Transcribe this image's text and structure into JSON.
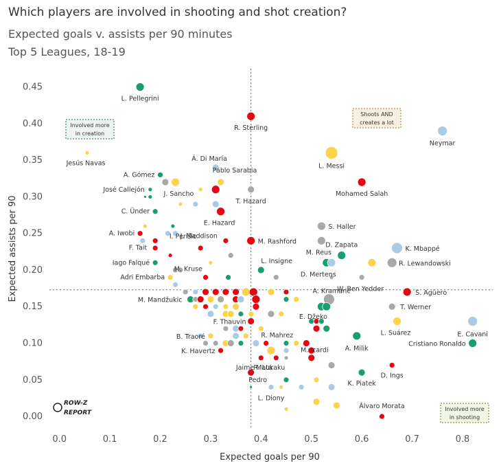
{
  "header": {
    "title": "Which players are involved in shooting and shot creation?",
    "subtitle1": "Expected goals v. assists per 90 minutes",
    "subtitle2": "Top 5 Leagues, 18-19"
  },
  "logo": {
    "line1": "ROW-Z",
    "line2": "REPORT"
  },
  "annotations": {
    "creation": [
      "Involved more",
      "in creation"
    ],
    "both": [
      "Shoots AND",
      "creates a lot"
    ],
    "shooting": [
      "Involved more",
      "in shooting"
    ]
  },
  "colors": {
    "green": "#1b9e6e",
    "red": "#e30613",
    "grey": "#a8a8a8",
    "lightblue": "#a9cbe8",
    "yellow": "#fdd34d"
  },
  "chart_data": {
    "type": "scatter",
    "xlabel": "Expected goals per 90",
    "ylabel": "Expected assists per 90",
    "xlim": [
      -0.02,
      0.86
    ],
    "ylim": [
      -0.015,
      0.475
    ],
    "xticks": [
      "0.0",
      "0.1",
      "0.2",
      "0.3",
      "0.4",
      "0.5",
      "0.6",
      "0.7",
      "0.8"
    ],
    "yticks": [
      "0.00",
      "0.05",
      "0.10",
      "0.15",
      "0.20",
      "0.25",
      "0.30",
      "0.35",
      "0.40",
      "0.45"
    ],
    "reference_lines": {
      "x": 0.38,
      "y": 0.173
    },
    "points": [
      {
        "name": "L. Pellegrini",
        "x": 0.16,
        "y": 0.45,
        "color": "green",
        "size": 6
      },
      {
        "name": "R. Sterling",
        "x": 0.38,
        "y": 0.41,
        "color": "red",
        "size": 6
      },
      {
        "name": "Neymar",
        "x": 0.76,
        "y": 0.39,
        "color": "lightblue",
        "size": 7
      },
      {
        "name": "Jesús Navas",
        "x": 0.055,
        "y": 0.36,
        "color": "yellow",
        "size": 3
      },
      {
        "name": "Á. Di María",
        "x": 0.31,
        "y": 0.34,
        "color": "lightblue",
        "size": 5
      },
      {
        "name": "L. Messi",
        "x": 0.54,
        "y": 0.36,
        "color": "yellow",
        "size": 9
      },
      {
        "name": "A. Gómez",
        "x": 0.2,
        "y": 0.33,
        "color": "green",
        "size": 4
      },
      {
        "name": "Pablo Sarabia",
        "x": 0.32,
        "y": 0.32,
        "color": "yellow",
        "size": 5
      },
      {
        "name": "J. Sancho",
        "x": 0.23,
        "y": 0.32,
        "color": "yellow",
        "size": 6
      },
      {
        "name": "",
        "x": 0.21,
        "y": 0.32,
        "color": "grey",
        "size": 5
      },
      {
        "name": "Mohamed Salah",
        "x": 0.6,
        "y": 0.32,
        "color": "red",
        "size": 6
      },
      {
        "name": "José Callejón",
        "x": 0.18,
        "y": 0.31,
        "color": "green",
        "size": 3
      },
      {
        "name": "",
        "x": 0.17,
        "y": 0.3,
        "color": "green",
        "size": 2
      },
      {
        "name": "",
        "x": 0.18,
        "y": 0.3,
        "color": "green",
        "size": 3
      },
      {
        "name": "T. Hazard",
        "x": 0.38,
        "y": 0.31,
        "color": "grey",
        "size": 5
      },
      {
        "name": "",
        "x": 0.31,
        "y": 0.31,
        "color": "red",
        "size": 6
      },
      {
        "name": "",
        "x": 0.28,
        "y": 0.31,
        "color": "yellow",
        "size": 3
      },
      {
        "name": "",
        "x": 0.31,
        "y": 0.29,
        "color": "lightblue",
        "size": 5
      },
      {
        "name": "",
        "x": 0.27,
        "y": 0.29,
        "color": "lightblue",
        "size": 4
      },
      {
        "name": "",
        "x": 0.24,
        "y": 0.29,
        "color": "yellow",
        "size": 3
      },
      {
        "name": "C. Ünder",
        "x": 0.19,
        "y": 0.28,
        "color": "green",
        "size": 4
      },
      {
        "name": "E. Hazard",
        "x": 0.32,
        "y": 0.28,
        "color": "red",
        "size": 6
      },
      {
        "name": "I. Perišic",
        "x": 0.225,
        "y": 0.26,
        "color": "green",
        "size": 3
      },
      {
        "name": "S. Haller",
        "x": 0.52,
        "y": 0.26,
        "color": "grey",
        "size": 6
      },
      {
        "name": "A. Iwobi",
        "x": 0.16,
        "y": 0.25,
        "color": "red",
        "size": 4
      },
      {
        "name": "",
        "x": 0.17,
        "y": 0.26,
        "color": "yellow",
        "size": 3
      },
      {
        "name": "",
        "x": 0.215,
        "y": 0.25,
        "color": "lightblue",
        "size": 4
      },
      {
        "name": "",
        "x": 0.23,
        "y": 0.25,
        "color": "lightblue",
        "size": 4
      },
      {
        "name": "J. Maddison",
        "x": 0.33,
        "y": 0.24,
        "color": "red",
        "size": 4
      },
      {
        "name": "M. Rashford",
        "x": 0.38,
        "y": 0.24,
        "color": "red",
        "size": 6
      },
      {
        "name": "M. Reus",
        "x": 0.52,
        "y": 0.24,
        "color": "grey",
        "size": 6
      },
      {
        "name": "D. Zapata",
        "x": 0.56,
        "y": 0.22,
        "color": "green",
        "size": 6
      },
      {
        "name": "K. Mbappé",
        "x": 0.67,
        "y": 0.23,
        "color": "lightblue",
        "size": 8
      },
      {
        "name": "",
        "x": 0.62,
        "y": 0.21,
        "color": "yellow",
        "size": 6
      },
      {
        "name": "R. Lewandowski",
        "x": 0.66,
        "y": 0.21,
        "color": "grey",
        "size": 7
      },
      {
        "name": "F. Tait",
        "x": 0.19,
        "y": 0.24,
        "color": "red",
        "size": 4
      },
      {
        "name": "",
        "x": 0.165,
        "y": 0.24,
        "color": "lightblue",
        "size": 4
      },
      {
        "name": "",
        "x": 0.19,
        "y": 0.23,
        "color": "red",
        "size": 4
      },
      {
        "name": "",
        "x": 0.28,
        "y": 0.23,
        "color": "red",
        "size": 4
      },
      {
        "name": "",
        "x": 0.34,
        "y": 0.22,
        "color": "grey",
        "size": 4
      },
      {
        "name": "Iago Falqué",
        "x": 0.19,
        "y": 0.21,
        "color": "green",
        "size": 4
      },
      {
        "name": "",
        "x": 0.22,
        "y": 0.22,
        "color": "red",
        "size": 3
      },
      {
        "name": "M. Kruse",
        "x": 0.3,
        "y": 0.21,
        "color": "yellow",
        "size": 3
      },
      {
        "name": "L. Insigne",
        "x": 0.4,
        "y": 0.2,
        "color": "green",
        "size": 5
      },
      {
        "name": "",
        "x": 0.43,
        "y": 0.19,
        "color": "grey",
        "size": 4
      },
      {
        "name": "D. Mertens",
        "x": 0.53,
        "y": 0.21,
        "color": "green",
        "size": 6
      },
      {
        "name": "",
        "x": 0.54,
        "y": 0.21,
        "color": "lightblue",
        "size": 6
      },
      {
        "name": "W. Ben Yedder",
        "x": 0.6,
        "y": 0.19,
        "color": "grey",
        "size": 4
      },
      {
        "name": "",
        "x": 0.23,
        "y": 0.2,
        "color": "grey",
        "size": 4
      },
      {
        "name": "",
        "x": 0.24,
        "y": 0.2,
        "color": "grey",
        "size": 4
      },
      {
        "name": "Adri Embarba",
        "x": 0.22,
        "y": 0.19,
        "color": "yellow",
        "size": 4
      },
      {
        "name": "",
        "x": 0.29,
        "y": 0.19,
        "color": "red",
        "size": 4
      },
      {
        "name": "",
        "x": 0.335,
        "y": 0.19,
        "color": "green",
        "size": 4
      },
      {
        "name": "",
        "x": 0.23,
        "y": 0.18,
        "color": "lightblue",
        "size": 4
      },
      {
        "name": "A. Kramaric",
        "x": 0.54,
        "y": 0.19,
        "color": "grey",
        "size": 3
      },
      {
        "name": "S. Agüero",
        "x": 0.69,
        "y": 0.17,
        "color": "red",
        "size": 6
      },
      {
        "name": "M. Mandžukic",
        "x": 0.26,
        "y": 0.16,
        "color": "green",
        "size": 5
      },
      {
        "name": "",
        "x": 0.25,
        "y": 0.17,
        "color": "grey",
        "size": 4
      },
      {
        "name": "",
        "x": 0.27,
        "y": 0.17,
        "color": "lightblue",
        "size": 4
      },
      {
        "name": "",
        "x": 0.29,
        "y": 0.17,
        "color": "red",
        "size": 5
      },
      {
        "name": "",
        "x": 0.31,
        "y": 0.17,
        "color": "red",
        "size": 5
      },
      {
        "name": "",
        "x": 0.33,
        "y": 0.17,
        "color": "red",
        "size": 5
      },
      {
        "name": "",
        "x": 0.35,
        "y": 0.17,
        "color": "red",
        "size": 5
      },
      {
        "name": "",
        "x": 0.37,
        "y": 0.17,
        "color": "yellow",
        "size": 6
      },
      {
        "name": "",
        "x": 0.385,
        "y": 0.17,
        "color": "red",
        "size": 6
      },
      {
        "name": "",
        "x": 0.42,
        "y": 0.17,
        "color": "yellow",
        "size": 5
      },
      {
        "name": "",
        "x": 0.45,
        "y": 0.17,
        "color": "red",
        "size": 4
      },
      {
        "name": "",
        "x": 0.27,
        "y": 0.16,
        "color": "grey",
        "size": 4
      },
      {
        "name": "",
        "x": 0.28,
        "y": 0.16,
        "color": "red",
        "size": 5
      },
      {
        "name": "",
        "x": 0.3,
        "y": 0.16,
        "color": "yellow",
        "size": 5
      },
      {
        "name": "",
        "x": 0.32,
        "y": 0.16,
        "color": "grey",
        "size": 5
      },
      {
        "name": "",
        "x": 0.35,
        "y": 0.16,
        "color": "red",
        "size": 5
      },
      {
        "name": "",
        "x": 0.36,
        "y": 0.16,
        "color": "lightblue",
        "size": 5
      },
      {
        "name": "",
        "x": 0.39,
        "y": 0.16,
        "color": "red",
        "size": 6
      },
      {
        "name": "",
        "x": 0.45,
        "y": 0.16,
        "color": "green",
        "size": 4
      },
      {
        "name": "",
        "x": 0.47,
        "y": 0.16,
        "color": "yellow",
        "size": 4
      },
      {
        "name": "",
        "x": 0.535,
        "y": 0.16,
        "color": "grey",
        "size": 8
      },
      {
        "name": "T. Werner",
        "x": 0.66,
        "y": 0.15,
        "color": "grey",
        "size": 5
      },
      {
        "name": "",
        "x": 0.27,
        "y": 0.15,
        "color": "yellow",
        "size": 4
      },
      {
        "name": "",
        "x": 0.29,
        "y": 0.15,
        "color": "red",
        "size": 4
      },
      {
        "name": "",
        "x": 0.31,
        "y": 0.15,
        "color": "lightblue",
        "size": 4
      },
      {
        "name": "",
        "x": 0.33,
        "y": 0.15,
        "color": "yellow",
        "size": 4
      },
      {
        "name": "",
        "x": 0.35,
        "y": 0.15,
        "color": "yellow",
        "size": 5
      },
      {
        "name": "",
        "x": 0.39,
        "y": 0.15,
        "color": "red",
        "size": 5
      },
      {
        "name": "E. Džeko",
        "x": 0.52,
        "y": 0.15,
        "color": "green",
        "size": 6
      },
      {
        "name": "",
        "x": 0.53,
        "y": 0.15,
        "color": "green",
        "size": 6
      },
      {
        "name": "",
        "x": 0.3,
        "y": 0.14,
        "color": "lightblue",
        "size": 5
      },
      {
        "name": "",
        "x": 0.33,
        "y": 0.14,
        "color": "yellow",
        "size": 5
      },
      {
        "name": "",
        "x": 0.34,
        "y": 0.14,
        "color": "yellow",
        "size": 5
      },
      {
        "name": "",
        "x": 0.36,
        "y": 0.14,
        "color": "green",
        "size": 4
      },
      {
        "name": "",
        "x": 0.38,
        "y": 0.14,
        "color": "yellow",
        "size": 4
      },
      {
        "name": "",
        "x": 0.42,
        "y": 0.14,
        "color": "grey",
        "size": 5
      },
      {
        "name": "",
        "x": 0.44,
        "y": 0.14,
        "color": "yellow",
        "size": 4
      },
      {
        "name": "F. Thauvin",
        "x": 0.38,
        "y": 0.13,
        "color": "red",
        "size": 5
      },
      {
        "name": "",
        "x": 0.5,
        "y": 0.13,
        "color": "green",
        "size": 4
      },
      {
        "name": "",
        "x": 0.51,
        "y": 0.13,
        "color": "red",
        "size": 4
      },
      {
        "name": "",
        "x": 0.52,
        "y": 0.13,
        "color": "green",
        "size": 4
      },
      {
        "name": "L. Suárez",
        "x": 0.67,
        "y": 0.13,
        "color": "yellow",
        "size": 6
      },
      {
        "name": "E. Cavani",
        "x": 0.82,
        "y": 0.13,
        "color": "lightblue",
        "size": 7
      },
      {
        "name": "R. Mahrez",
        "x": 0.4,
        "y": 0.12,
        "color": "yellow",
        "size": 4
      },
      {
        "name": "",
        "x": 0.51,
        "y": 0.12,
        "color": "red",
        "size": 5
      },
      {
        "name": "",
        "x": 0.53,
        "y": 0.12,
        "color": "green",
        "size": 5
      },
      {
        "name": "",
        "x": 0.35,
        "y": 0.12,
        "color": "lightblue",
        "size": 5
      },
      {
        "name": "",
        "x": 0.36,
        "y": 0.12,
        "color": "red",
        "size": 4
      },
      {
        "name": "",
        "x": 0.33,
        "y": 0.12,
        "color": "grey",
        "size": 4
      },
      {
        "name": "B. Traoré",
        "x": 0.3,
        "y": 0.11,
        "color": "yellow",
        "size": 4
      },
      {
        "name": "",
        "x": 0.28,
        "y": 0.11,
        "color": "lightblue",
        "size": 4
      },
      {
        "name": "",
        "x": 0.35,
        "y": 0.11,
        "color": "lightblue",
        "size": 5
      },
      {
        "name": "",
        "x": 0.37,
        "y": 0.11,
        "color": "yellow",
        "size": 4
      },
      {
        "name": "M. Icardi",
        "x": 0.49,
        "y": 0.1,
        "color": "red",
        "size": 5
      },
      {
        "name": "A. Milik",
        "x": 0.59,
        "y": 0.11,
        "color": "green",
        "size": 6
      },
      {
        "name": "Cristiano Ronaldo",
        "x": 0.82,
        "y": 0.1,
        "color": "green",
        "size": 6
      },
      {
        "name": "",
        "x": 0.29,
        "y": 0.1,
        "color": "grey",
        "size": 4
      },
      {
        "name": "",
        "x": 0.31,
        "y": 0.1,
        "color": "grey",
        "size": 4
      },
      {
        "name": "",
        "x": 0.33,
        "y": 0.1,
        "color": "yellow",
        "size": 5
      },
      {
        "name": "",
        "x": 0.34,
        "y": 0.1,
        "color": "grey",
        "size": 5
      },
      {
        "name": "",
        "x": 0.36,
        "y": 0.1,
        "color": "green",
        "size": 4
      },
      {
        "name": "",
        "x": 0.39,
        "y": 0.1,
        "color": "lightblue",
        "size": 5
      },
      {
        "name": "",
        "x": 0.41,
        "y": 0.1,
        "color": "red",
        "size": 4
      },
      {
        "name": "",
        "x": 0.45,
        "y": 0.1,
        "color": "green",
        "size": 4
      },
      {
        "name": "",
        "x": 0.47,
        "y": 0.1,
        "color": "yellow",
        "size": 4
      },
      {
        "name": "K. Havertz",
        "x": 0.32,
        "y": 0.09,
        "color": "red",
        "size": 4
      },
      {
        "name": "",
        "x": 0.42,
        "y": 0.09,
        "color": "yellow",
        "size": 6
      },
      {
        "name": "",
        "x": 0.45,
        "y": 0.09,
        "color": "lightblue",
        "size": 4
      },
      {
        "name": "",
        "x": 0.5,
        "y": 0.09,
        "color": "red",
        "size": 5
      },
      {
        "name": "Jaime Mata",
        "x": 0.4,
        "y": 0.08,
        "color": "red",
        "size": 4
      },
      {
        "name": "R. Lukaku",
        "x": 0.43,
        "y": 0.08,
        "color": "red",
        "size": 4
      },
      {
        "name": "",
        "x": 0.45,
        "y": 0.08,
        "color": "grey",
        "size": 3
      },
      {
        "name": "",
        "x": 0.5,
        "y": 0.08,
        "color": "red",
        "size": 5
      },
      {
        "name": "",
        "x": 0.54,
        "y": 0.07,
        "color": "grey",
        "size": 5
      },
      {
        "name": "D. Ings",
        "x": 0.66,
        "y": 0.07,
        "color": "red",
        "size": 4
      },
      {
        "name": "Pedro",
        "x": 0.38,
        "y": 0.06,
        "color": "red",
        "size": 5
      },
      {
        "name": "K. Piatek",
        "x": 0.6,
        "y": 0.06,
        "color": "green",
        "size": 5
      },
      {
        "name": "",
        "x": 0.45,
        "y": 0.05,
        "color": "green",
        "size": 4
      },
      {
        "name": "",
        "x": 0.51,
        "y": 0.05,
        "color": "yellow",
        "size": 4
      },
      {
        "name": "",
        "x": 0.38,
        "y": 0.04,
        "color": "green",
        "size": 2
      },
      {
        "name": "L. Diony",
        "x": 0.42,
        "y": 0.04,
        "color": "lightblue",
        "size": 4
      },
      {
        "name": "",
        "x": 0.44,
        "y": 0.04,
        "color": "yellow",
        "size": 3
      },
      {
        "name": "",
        "x": 0.48,
        "y": 0.04,
        "color": "lightblue",
        "size": 4
      },
      {
        "name": "",
        "x": 0.54,
        "y": 0.04,
        "color": "lightblue",
        "size": 5
      },
      {
        "name": "",
        "x": 0.51,
        "y": 0.02,
        "color": "yellow",
        "size": 5
      },
      {
        "name": "",
        "x": 0.55,
        "y": 0.015,
        "color": "yellow",
        "size": 5
      },
      {
        "name": "",
        "x": 0.45,
        "y": 0.01,
        "color": "yellow",
        "size": 3
      },
      {
        "name": "Álvaro Morata",
        "x": 0.64,
        "y": 0.0,
        "color": "red",
        "size": 4
      }
    ]
  }
}
